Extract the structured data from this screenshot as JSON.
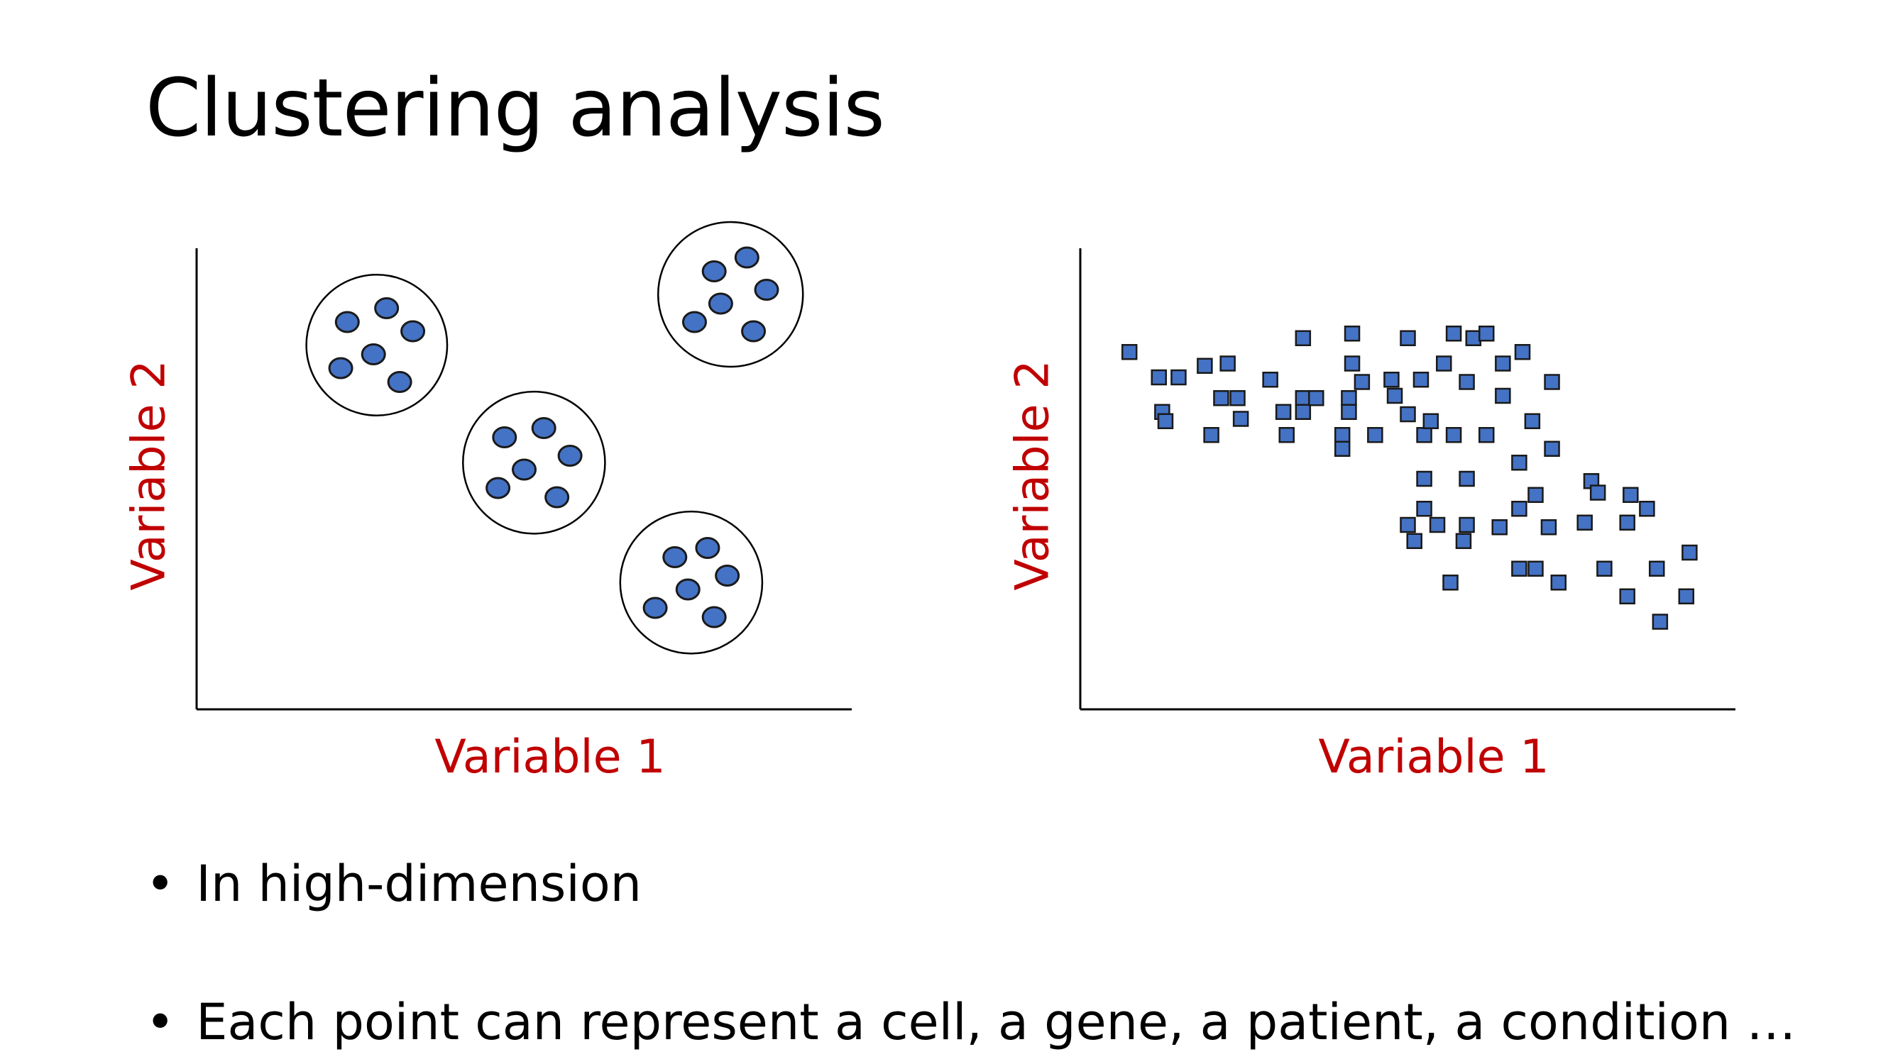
{
  "slide": {
    "title": "Clustering analysis"
  },
  "plots": [
    {
      "xlabel": "Variable 1",
      "ylabel": "Variable 2"
    },
    {
      "xlabel": "Variable 1",
      "ylabel": "Variable 2"
    }
  ],
  "bullets": [
    {
      "marker": "•",
      "text": "In high-dimension"
    },
    {
      "marker": "•",
      "text": "Each point can represent a cell, a gene, a patient, a condition …"
    }
  ],
  "colors": {
    "point_fill": "#4472c4",
    "axis_label": "#c00000",
    "title": "#000000"
  },
  "chart_data": [
    {
      "type": "scatter",
      "title": "",
      "xlabel": "Variable 1",
      "ylabel": "Variable 2",
      "grid": false,
      "marker": "circle",
      "clusters": [
        {
          "points": [
            [
              0.23,
              0.84
            ],
            [
              0.29,
              0.87
            ],
            [
              0.33,
              0.82
            ],
            [
              0.22,
              0.74
            ],
            [
              0.27,
              0.77
            ],
            [
              0.31,
              0.71
            ]
          ]
        },
        {
          "points": [
            [
              0.79,
              0.95
            ],
            [
              0.84,
              0.98
            ],
            [
              0.87,
              0.91
            ],
            [
              0.76,
              0.84
            ],
            [
              0.8,
              0.88
            ],
            [
              0.85,
              0.82
            ]
          ]
        },
        {
          "points": [
            [
              0.47,
              0.59
            ],
            [
              0.53,
              0.61
            ],
            [
              0.57,
              0.55
            ],
            [
              0.46,
              0.48
            ],
            [
              0.5,
              0.52
            ],
            [
              0.55,
              0.46
            ]
          ]
        },
        {
          "points": [
            [
              0.73,
              0.33
            ],
            [
              0.78,
              0.35
            ],
            [
              0.81,
              0.29
            ],
            [
              0.7,
              0.22
            ],
            [
              0.75,
              0.26
            ],
            [
              0.79,
              0.2
            ]
          ]
        }
      ]
    },
    {
      "type": "scatter",
      "title": "",
      "xlabel": "Variable 1",
      "ylabel": "Variable 2",
      "grid": false,
      "marker": "square",
      "points": [
        [
          0.075,
          0.775
        ],
        [
          0.12,
          0.72
        ],
        [
          0.15,
          0.72
        ],
        [
          0.19,
          0.745
        ],
        [
          0.225,
          0.75
        ],
        [
          0.125,
          0.645
        ],
        [
          0.13,
          0.625
        ],
        [
          0.2,
          0.595
        ],
        [
          0.215,
          0.675
        ],
        [
          0.24,
          0.675
        ],
        [
          0.245,
          0.63
        ],
        [
          0.29,
          0.715
        ],
        [
          0.31,
          0.645
        ],
        [
          0.315,
          0.595
        ],
        [
          0.34,
          0.675
        ],
        [
          0.34,
          0.645
        ],
        [
          0.34,
          0.805
        ],
        [
          0.36,
          0.675
        ],
        [
          0.4,
          0.595
        ],
        [
          0.4,
          0.565
        ],
        [
          0.41,
          0.675
        ],
        [
          0.41,
          0.645
        ],
        [
          0.415,
          0.75
        ],
        [
          0.415,
          0.815
        ],
        [
          0.43,
          0.71
        ],
        [
          0.45,
          0.595
        ],
        [
          0.48,
          0.68
        ],
        [
          0.475,
          0.715
        ],
        [
          0.5,
          0.64
        ],
        [
          0.5,
          0.805
        ],
        [
          0.52,
          0.715
        ],
        [
          0.525,
          0.595
        ],
        [
          0.535,
          0.625
        ],
        [
          0.555,
          0.75
        ],
        [
          0.57,
          0.595
        ],
        [
          0.57,
          0.815
        ],
        [
          0.59,
          0.71
        ],
        [
          0.6,
          0.805
        ],
        [
          0.62,
          0.595
        ],
        [
          0.62,
          0.815
        ],
        [
          0.645,
          0.68
        ],
        [
          0.645,
          0.75
        ],
        [
          0.67,
          0.535
        ],
        [
          0.675,
          0.775
        ],
        [
          0.69,
          0.625
        ],
        [
          0.72,
          0.565
        ],
        [
          0.72,
          0.71
        ],
        [
          0.525,
          0.5
        ],
        [
          0.59,
          0.5
        ],
        [
          0.525,
          0.435
        ],
        [
          0.5,
          0.4
        ],
        [
          0.545,
          0.4
        ],
        [
          0.59,
          0.4
        ],
        [
          0.64,
          0.395
        ],
        [
          0.67,
          0.435
        ],
        [
          0.695,
          0.465
        ],
        [
          0.715,
          0.395
        ],
        [
          0.51,
          0.365
        ],
        [
          0.585,
          0.365
        ],
        [
          0.77,
          0.405
        ],
        [
          0.78,
          0.495
        ],
        [
          0.79,
          0.47
        ],
        [
          0.835,
          0.405
        ],
        [
          0.84,
          0.465
        ],
        [
          0.865,
          0.435
        ],
        [
          0.565,
          0.275
        ],
        [
          0.67,
          0.305
        ],
        [
          0.695,
          0.305
        ],
        [
          0.73,
          0.275
        ],
        [
          0.8,
          0.305
        ],
        [
          0.835,
          0.245
        ],
        [
          0.88,
          0.305
        ],
        [
          0.885,
          0.19
        ],
        [
          0.925,
          0.245
        ],
        [
          0.93,
          0.34
        ]
      ]
    }
  ]
}
